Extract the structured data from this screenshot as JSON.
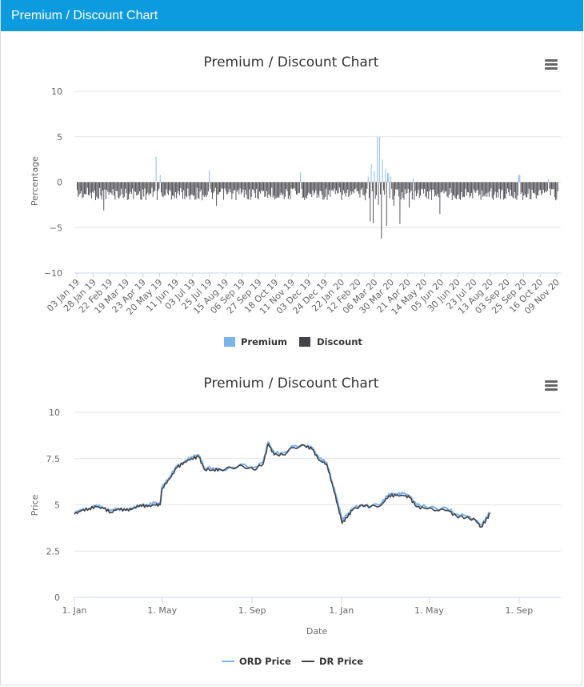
{
  "panel": {
    "title": "Premium / Discount Chart"
  },
  "colors": {
    "header": "#0d9be0",
    "premium": "#7cb5ec",
    "discount": "#434348",
    "ord": "#7cb5ec",
    "dr": "#434348",
    "grid": "#e6e6e6"
  },
  "chart_data": [
    {
      "type": "bar",
      "title": "Premium / Discount Chart",
      "ylabel": "Percentage",
      "xlabel": "",
      "ylim": [
        -10,
        10
      ],
      "yticks": [
        10,
        5,
        0,
        -5,
        -10
      ],
      "ytick_labels": [
        "10",
        "5",
        "0",
        "−5",
        "−10"
      ],
      "categories": [
        "03 Jan 19",
        "28 Jan 19",
        "22 Feb 19",
        "19 Mar 19",
        "23 Apr 19",
        "20 May 19",
        "11 Jun 19",
        "03 Jul 19",
        "25 Jul 19",
        "15 Aug 19",
        "06 Sep 19",
        "27 Sep 19",
        "18 Oct 19",
        "11 Nov 19",
        "03 Dec 19",
        "24 Dec 19",
        "22 Jan 20",
        "12 Feb 20",
        "06 Mar 20",
        "30 Mar 20",
        "21 Apr 20",
        "14 May 20",
        "05 Jun 20",
        "30 Jun 20",
        "23 Jul 20",
        "13 Aug 20",
        "03 Sep 20",
        "25 Sep 20",
        "16 Oct 20",
        "09 Nov 20"
      ],
      "series": [
        {
          "name": "Premium",
          "notable": [
            {
              "at": 0.165,
              "value": 2.8
            },
            {
              "at": 0.172,
              "value": 0.8
            },
            {
              "at": 0.275,
              "value": 1.3
            },
            {
              "at": 0.465,
              "value": 1.1
            },
            {
              "at": 0.605,
              "value": 0.6
            },
            {
              "at": 0.612,
              "value": 2.0
            },
            {
              "at": 0.618,
              "value": 1.2
            },
            {
              "at": 0.624,
              "value": 5.0
            },
            {
              "at": 0.629,
              "value": 5.0
            },
            {
              "at": 0.635,
              "value": 2.5
            },
            {
              "at": 0.641,
              "value": 1.5
            },
            {
              "at": 0.647,
              "value": 1.0
            },
            {
              "at": 0.652,
              "value": 0.6
            },
            {
              "at": 0.7,
              "value": 0.4
            },
            {
              "at": 0.92,
              "value": 0.8
            },
            {
              "at": 0.98,
              "value": 0.3
            }
          ]
        },
        {
          "name": "Discount",
          "notable": [
            {
              "at": 0.055,
              "value": -3.1
            },
            {
              "at": 0.29,
              "value": -2.6
            },
            {
              "at": 0.61,
              "value": -4.3
            },
            {
              "at": 0.616,
              "value": -4.5
            },
            {
              "at": 0.627,
              "value": -2.5
            },
            {
              "at": 0.633,
              "value": -6.2
            },
            {
              "at": 0.645,
              "value": -4.8
            },
            {
              "at": 0.658,
              "value": -2.6
            },
            {
              "at": 0.672,
              "value": -4.6
            },
            {
              "at": 0.69,
              "value": -2.8
            },
            {
              "at": 0.755,
              "value": -3.5
            }
          ]
        }
      ],
      "legend": "bottom-center"
    },
    {
      "type": "line",
      "title": "Premium / Discount Chart",
      "ylabel": "Price",
      "xlabel": "Date",
      "ylim": [
        0,
        10
      ],
      "yticks": [
        10,
        7.5,
        5,
        2.5,
        0
      ],
      "ytick_labels": [
        "10",
        "7.5",
        "5",
        "2.5",
        "0"
      ],
      "xlim": [
        0,
        665
      ],
      "xticks": [
        0,
        120,
        243,
        365,
        485,
        608
      ],
      "xtick_labels": [
        "1. Jan",
        "1. May",
        "1. Sep",
        "1. Jan",
        "1. May",
        "1. Sep"
      ],
      "series": [
        {
          "name": "ORD Price",
          "points": [
            [
              0,
              4.6
            ],
            [
              10,
              4.7
            ],
            [
              20,
              4.8
            ],
            [
              30,
              5.0
            ],
            [
              40,
              4.8
            ],
            [
              50,
              4.7
            ],
            [
              60,
              4.8
            ],
            [
              70,
              4.7
            ],
            [
              80,
              4.8
            ],
            [
              90,
              5.0
            ],
            [
              100,
              5.0
            ],
            [
              110,
              5.1
            ],
            [
              117,
              5.0
            ],
            [
              120,
              6.0
            ],
            [
              130,
              6.5
            ],
            [
              140,
              7.1
            ],
            [
              150,
              7.3
            ],
            [
              160,
              7.6
            ],
            [
              170,
              7.7
            ],
            [
              178,
              7.0
            ],
            [
              190,
              7.0
            ],
            [
              200,
              6.9
            ],
            [
              215,
              7.0
            ],
            [
              230,
              7.2
            ],
            [
              245,
              7.0
            ],
            [
              258,
              7.3
            ],
            [
              265,
              8.4
            ],
            [
              273,
              7.8
            ],
            [
              285,
              7.8
            ],
            [
              300,
              8.2
            ],
            [
              315,
              8.2
            ],
            [
              325,
              8.1
            ],
            [
              335,
              7.5
            ],
            [
              345,
              7.3
            ],
            [
              352,
              6.3
            ],
            [
              360,
              5.2
            ],
            [
              366,
              4.2
            ],
            [
              372,
              4.4
            ],
            [
              380,
              4.8
            ],
            [
              393,
              5.0
            ],
            [
              405,
              4.9
            ],
            [
              420,
              5.1
            ],
            [
              430,
              5.6
            ],
            [
              440,
              5.6
            ],
            [
              450,
              5.6
            ],
            [
              458,
              5.5
            ],
            [
              468,
              5.0
            ],
            [
              480,
              4.9
            ],
            [
              495,
              4.8
            ],
            [
              510,
              4.8
            ],
            [
              522,
              4.5
            ],
            [
              535,
              4.4
            ],
            [
              548,
              4.2
            ],
            [
              556,
              3.9
            ],
            [
              565,
              4.4
            ],
            [
              568,
              4.6
            ]
          ]
        },
        {
          "name": "DR Price",
          "points": [
            [
              0,
              4.5
            ],
            [
              10,
              4.7
            ],
            [
              20,
              4.8
            ],
            [
              30,
              4.9
            ],
            [
              40,
              4.8
            ],
            [
              50,
              4.6
            ],
            [
              60,
              4.8
            ],
            [
              70,
              4.7
            ],
            [
              80,
              4.8
            ],
            [
              90,
              5.0
            ],
            [
              100,
              4.9
            ],
            [
              110,
              5.0
            ],
            [
              117,
              5.0
            ],
            [
              120,
              5.9
            ],
            [
              130,
              6.4
            ],
            [
              140,
              7.0
            ],
            [
              150,
              7.3
            ],
            [
              160,
              7.5
            ],
            [
              170,
              7.6
            ],
            [
              178,
              6.9
            ],
            [
              190,
              6.9
            ],
            [
              200,
              6.9
            ],
            [
              215,
              7.0
            ],
            [
              230,
              7.1
            ],
            [
              245,
              6.9
            ],
            [
              258,
              7.2
            ],
            [
              265,
              8.3
            ],
            [
              273,
              7.7
            ],
            [
              285,
              7.7
            ],
            [
              300,
              8.1
            ],
            [
              315,
              8.2
            ],
            [
              325,
              8.0
            ],
            [
              335,
              7.4
            ],
            [
              345,
              7.2
            ],
            [
              352,
              6.2
            ],
            [
              360,
              5.0
            ],
            [
              366,
              4.0
            ],
            [
              372,
              4.3
            ],
            [
              380,
              4.7
            ],
            [
              393,
              5.0
            ],
            [
              405,
              4.9
            ],
            [
              420,
              5.0
            ],
            [
              430,
              5.5
            ],
            [
              440,
              5.5
            ],
            [
              450,
              5.5
            ],
            [
              458,
              5.4
            ],
            [
              468,
              4.9
            ],
            [
              480,
              4.8
            ],
            [
              495,
              4.7
            ],
            [
              510,
              4.7
            ],
            [
              522,
              4.4
            ],
            [
              535,
              4.3
            ],
            [
              548,
              4.2
            ],
            [
              556,
              3.8
            ],
            [
              565,
              4.3
            ],
            [
              568,
              4.5
            ]
          ]
        }
      ],
      "legend": "bottom-center"
    }
  ]
}
